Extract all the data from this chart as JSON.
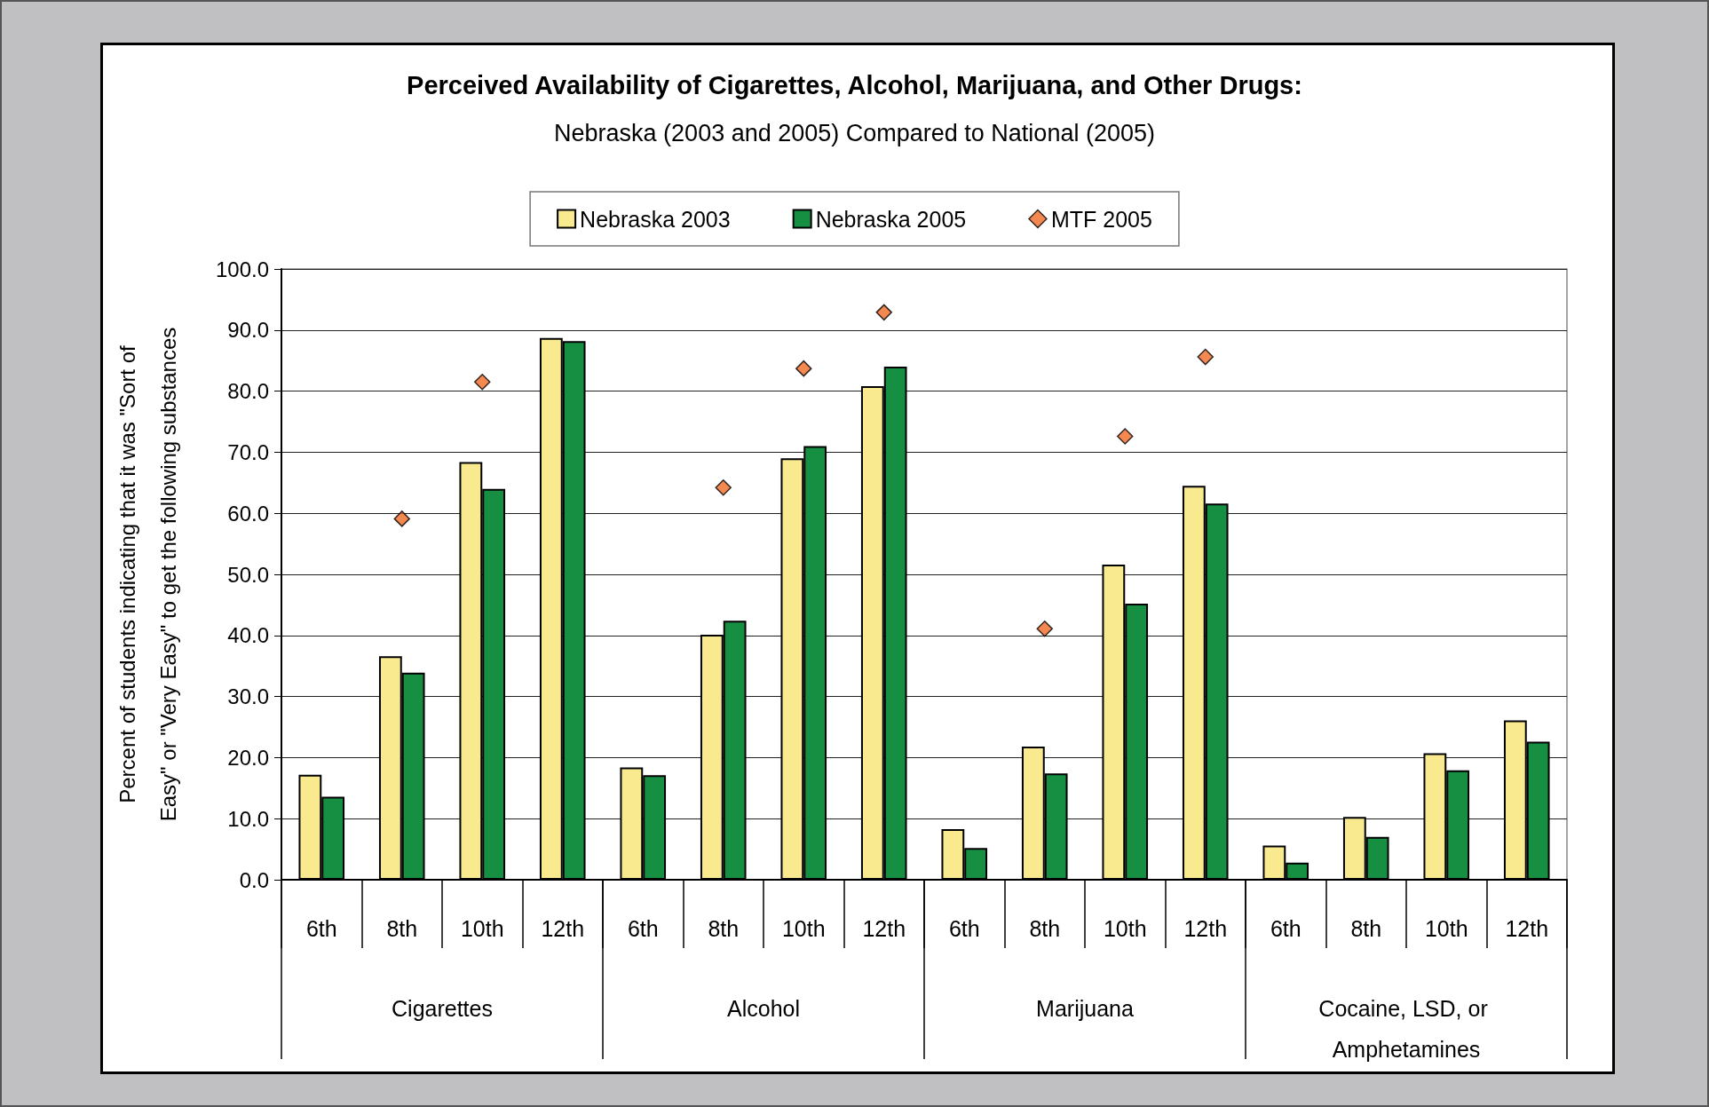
{
  "chart_data": {
    "type": "bar",
    "title": "Perceived Availability of Cigarettes, Alcohol, Marijuana, and Other Drugs:",
    "subtitle": "Nebraska (2003 and 2005) Compared to National (2005)",
    "ylabel": "Percent of students indicating that it was \"Sort of Easy\" or \"Very Easy\" to get the following substances",
    "categories": [
      "6th",
      "8th",
      "10th",
      "12th",
      "6th",
      "8th",
      "10th",
      "12th",
      "6th",
      "8th",
      "10th",
      "12th",
      "6th",
      "8th",
      "10th",
      "12th"
    ],
    "annotations": [
      "Cigarettes",
      "Alcohol",
      "Marijuana",
      "Cocaine, LSD, or Amphetamines"
    ],
    "series": [
      {
        "name": "Nebraska 2003",
        "color": "#f9ea8f",
        "values": [
          17.2,
          36.6,
          68.4,
          88.7,
          18.4,
          40.1,
          69.0,
          80.8,
          8.3,
          21.8,
          51.6,
          64.5,
          5.6,
          10.3,
          20.7,
          26.1
        ]
      },
      {
        "name": "Nebraska 2005",
        "color": "#178f43",
        "values": [
          13.6,
          33.9,
          64.0,
          88.2,
          17.1,
          42.4,
          71.0,
          84.0,
          5.2,
          17.4,
          45.2,
          61.6,
          2.8,
          7.0,
          17.9,
          22.6
        ]
      },
      {
        "name": "MTF 2005",
        "type": "scatter",
        "marker": "diamond",
        "color": "#f06a25",
        "values": [
          null,
          59.1,
          81.5,
          null,
          null,
          64.2,
          83.7,
          92.9,
          null,
          41.1,
          72.6,
          85.6,
          null,
          null,
          null,
          null
        ]
      }
    ],
    "ylim": [
      0,
      100
    ],
    "yticks": [
      {
        "value": 0,
        "label": "0.0"
      },
      {
        "value": 10,
        "label": "10.0"
      },
      {
        "value": 20,
        "label": "20.0"
      },
      {
        "value": 30,
        "label": "30.0"
      },
      {
        "value": 40,
        "label": "40.0"
      },
      {
        "value": 50,
        "label": "50.0"
      },
      {
        "value": 60,
        "label": "60.0"
      },
      {
        "value": 70,
        "label": "70.0"
      },
      {
        "value": 80,
        "label": "80.0"
      },
      {
        "value": 90,
        "label": "90.0"
      },
      {
        "value": 100,
        "label": "100.0"
      }
    ],
    "grid": "y",
    "legend": "top"
  }
}
